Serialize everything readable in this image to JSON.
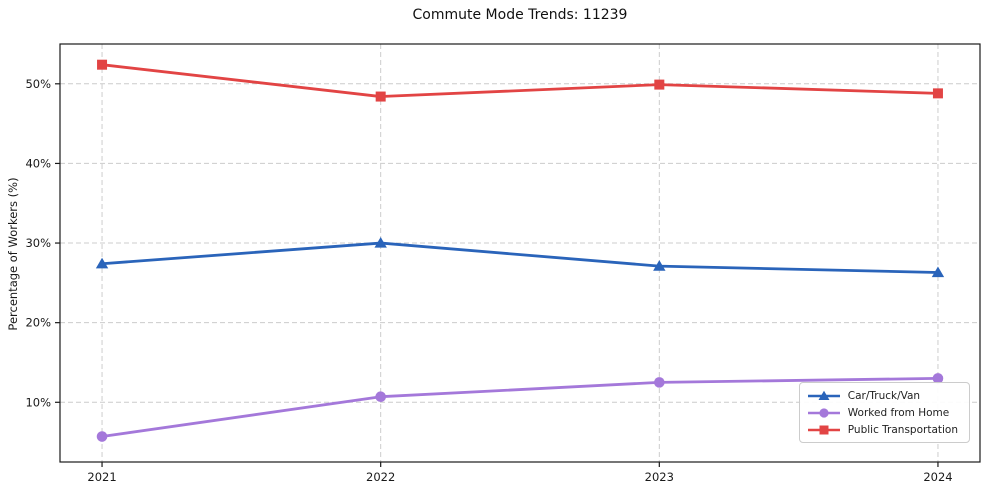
{
  "chart_data": {
    "type": "line",
    "title": "Commute Mode Trends: 11239",
    "xlabel": "",
    "ylabel": "Percentage of Workers (%)",
    "categories": [
      "2021",
      "2022",
      "2023",
      "2024"
    ],
    "series": [
      {
        "name": "Car/Truck/Van",
        "marker": "triangle",
        "color": "#2a64ba",
        "values": [
          27.4,
          30.0,
          27.1,
          26.3
        ]
      },
      {
        "name": "Worked from Home",
        "marker": "circle",
        "color": "#a478da",
        "values": [
          5.7,
          10.7,
          12.5,
          13.0
        ]
      },
      {
        "name": "Public Transportation",
        "marker": "square",
        "color": "#e24444",
        "values": [
          52.4,
          48.4,
          49.9,
          48.8
        ]
      }
    ],
    "yticks": [
      10,
      20,
      30,
      40,
      50
    ],
    "ytick_suffix": "%",
    "ylim": [
      2.5,
      55
    ],
    "grid": true,
    "legend_position": "lower right",
    "grid_color": "#cccccc",
    "axis_color": "#1a1a1a"
  }
}
